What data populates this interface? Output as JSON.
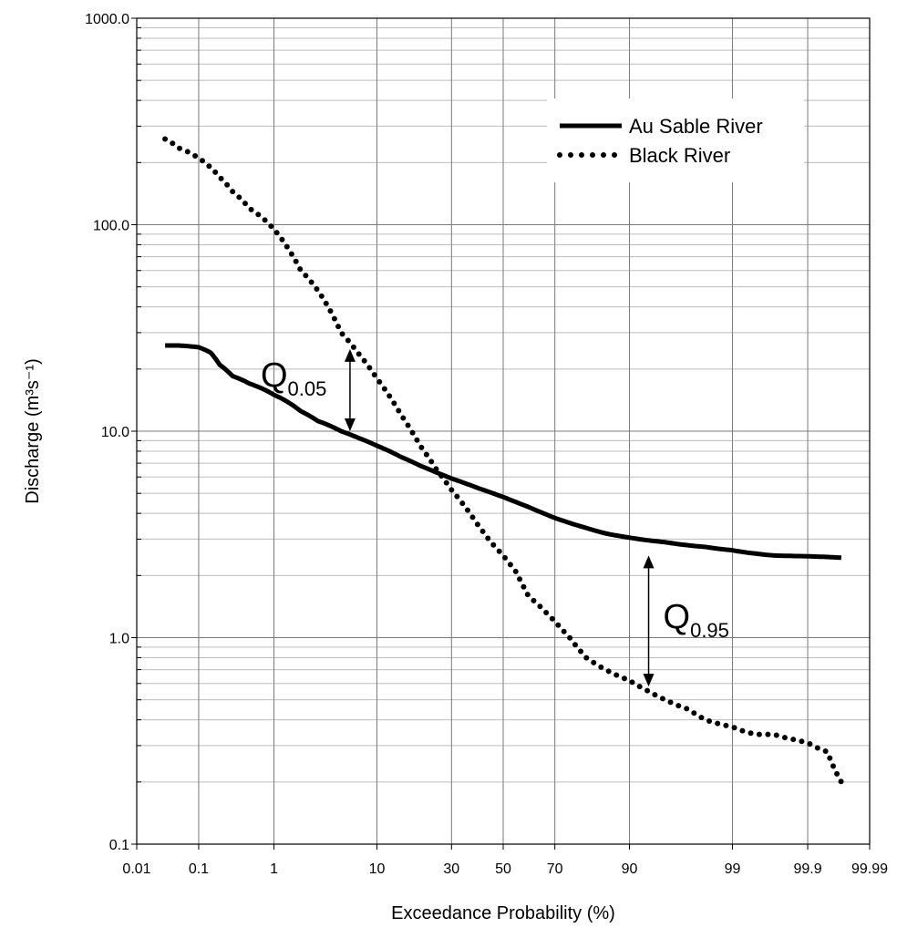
{
  "chart_data": {
    "type": "line",
    "title": "",
    "xlabel": "Exceedance Probability (%)",
    "ylabel": "Discharge (m³s⁻¹)",
    "xscale": "normal-probability",
    "yscale": "log",
    "xlim": [
      0.01,
      99.99
    ],
    "ylim": [
      0.1,
      1000
    ],
    "grid": true,
    "legend_position": "top-right",
    "x_ticks": [
      {
        "value": 0.01,
        "label": "0.01"
      },
      {
        "value": 0.1,
        "label": "0.1"
      },
      {
        "value": 1,
        "label": "1"
      },
      {
        "value": 10,
        "label": "10"
      },
      {
        "value": 30,
        "label": "30"
      },
      {
        "value": 50,
        "label": "50"
      },
      {
        "value": 70,
        "label": "70"
      },
      {
        "value": 90,
        "label": "90"
      },
      {
        "value": 99,
        "label": "99"
      },
      {
        "value": 99.9,
        "label": "99.9"
      },
      {
        "value": 99.99,
        "label": "99.99"
      }
    ],
    "y_ticks": [
      {
        "value": 0.1,
        "label": "0.1"
      },
      {
        "value": 1,
        "label": "1.0"
      },
      {
        "value": 10,
        "label": "10.0"
      },
      {
        "value": 100,
        "label": "100.0"
      },
      {
        "value": 1000,
        "label": "1000.0"
      }
    ],
    "series": [
      {
        "name": "Au Sable River",
        "style": "solid",
        "color": "#000000",
        "points": [
          [
            0.03,
            26
          ],
          [
            0.05,
            26
          ],
          [
            0.1,
            25.5
          ],
          [
            0.15,
            24
          ],
          [
            0.2,
            21
          ],
          [
            0.3,
            18.5
          ],
          [
            0.5,
            17
          ],
          [
            1,
            15
          ],
          [
            2,
            12.5
          ],
          [
            3,
            11.2
          ],
          [
            5,
            10
          ],
          [
            7,
            9.3
          ],
          [
            10,
            8.5
          ],
          [
            15,
            7.5
          ],
          [
            20,
            6.8
          ],
          [
            25,
            6.3
          ],
          [
            30,
            5.9
          ],
          [
            40,
            5.3
          ],
          [
            50,
            4.8
          ],
          [
            60,
            4.3
          ],
          [
            70,
            3.8
          ],
          [
            80,
            3.4
          ],
          [
            85,
            3.2
          ],
          [
            90,
            3.05
          ],
          [
            95,
            2.9
          ],
          [
            97,
            2.8
          ],
          [
            98,
            2.75
          ],
          [
            99,
            2.65
          ],
          [
            99.5,
            2.55
          ],
          [
            99.7,
            2.5
          ],
          [
            99.9,
            2.48
          ],
          [
            99.95,
            2.46
          ],
          [
            99.97,
            2.44
          ]
        ]
      },
      {
        "name": "Black River",
        "style": "dotted",
        "color": "#000000",
        "points": [
          [
            0.03,
            260
          ],
          [
            0.05,
            235
          ],
          [
            0.1,
            210
          ],
          [
            0.2,
            170
          ],
          [
            0.3,
            145
          ],
          [
            0.5,
            120
          ],
          [
            1,
            95
          ],
          [
            1.5,
            75
          ],
          [
            2,
            60
          ],
          [
            3,
            48
          ],
          [
            4,
            38
          ],
          [
            5,
            30
          ],
          [
            7,
            24
          ],
          [
            10,
            18
          ],
          [
            15,
            12
          ],
          [
            20,
            8.5
          ],
          [
            25,
            6.5
          ],
          [
            30,
            5.2
          ],
          [
            35,
            4.3
          ],
          [
            40,
            3.5
          ],
          [
            45,
            2.9
          ],
          [
            50,
            2.5
          ],
          [
            55,
            2.1
          ],
          [
            60,
            1.6
          ],
          [
            65,
            1.4
          ],
          [
            70,
            1.2
          ],
          [
            75,
            1.0
          ],
          [
            80,
            0.8
          ],
          [
            85,
            0.7
          ],
          [
            90,
            0.62
          ],
          [
            93,
            0.55
          ],
          [
            95,
            0.5
          ],
          [
            97,
            0.45
          ],
          [
            98,
            0.4
          ],
          [
            99,
            0.37
          ],
          [
            99.3,
            0.35
          ],
          [
            99.5,
            0.34
          ],
          [
            99.7,
            0.34
          ],
          [
            99.85,
            0.32
          ],
          [
            99.9,
            0.31
          ],
          [
            99.95,
            0.28
          ],
          [
            99.97,
            0.2
          ]
        ]
      }
    ],
    "annotations": [
      {
        "label_main": "Q",
        "label_sub": "0.05",
        "x": 6,
        "y_top": 25,
        "y_bottom": 10
      },
      {
        "label_main": "Q",
        "label_sub": "0.95",
        "x": 93,
        "y_top": 2.5,
        "y_bottom": 0.58
      }
    ]
  }
}
